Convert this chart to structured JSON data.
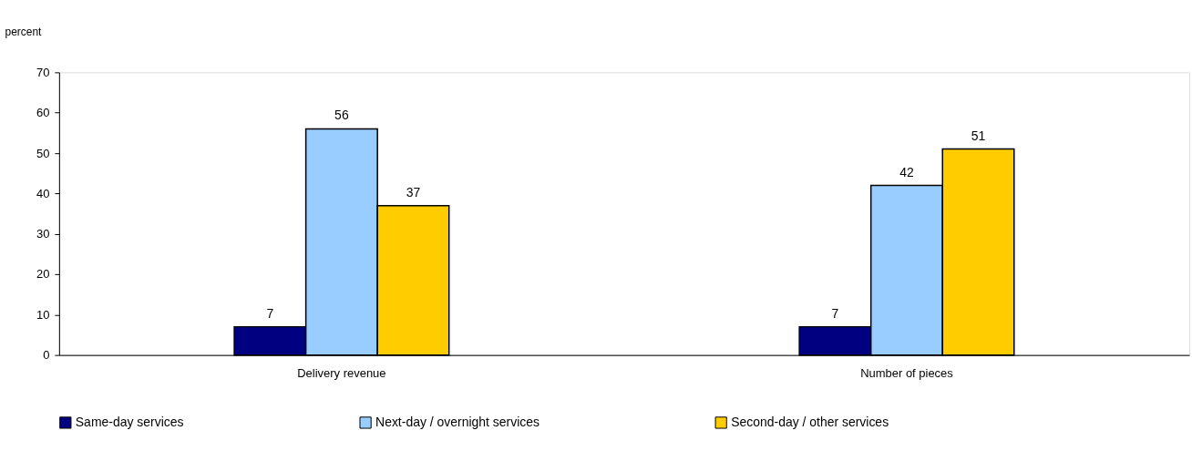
{
  "chart_data": {
    "type": "bar",
    "ylabel": "percent",
    "categories": [
      "Delivery revenue",
      "Number of pieces"
    ],
    "series": [
      {
        "name": "Same-day services",
        "color": "#000080",
        "values": [
          7,
          7
        ]
      },
      {
        "name": "Next-day / overnight services",
        "color": "#99ccff",
        "values": [
          56,
          42
        ]
      },
      {
        "name": "Second-day / other services",
        "color": "#ffcc00",
        "values": [
          37,
          51
        ]
      }
    ],
    "ylim": [
      0,
      70
    ],
    "yticks": [
      0,
      10,
      20,
      30,
      40,
      50,
      60,
      70
    ],
    "grid": false,
    "legend": "bottom",
    "data_labels": true
  }
}
